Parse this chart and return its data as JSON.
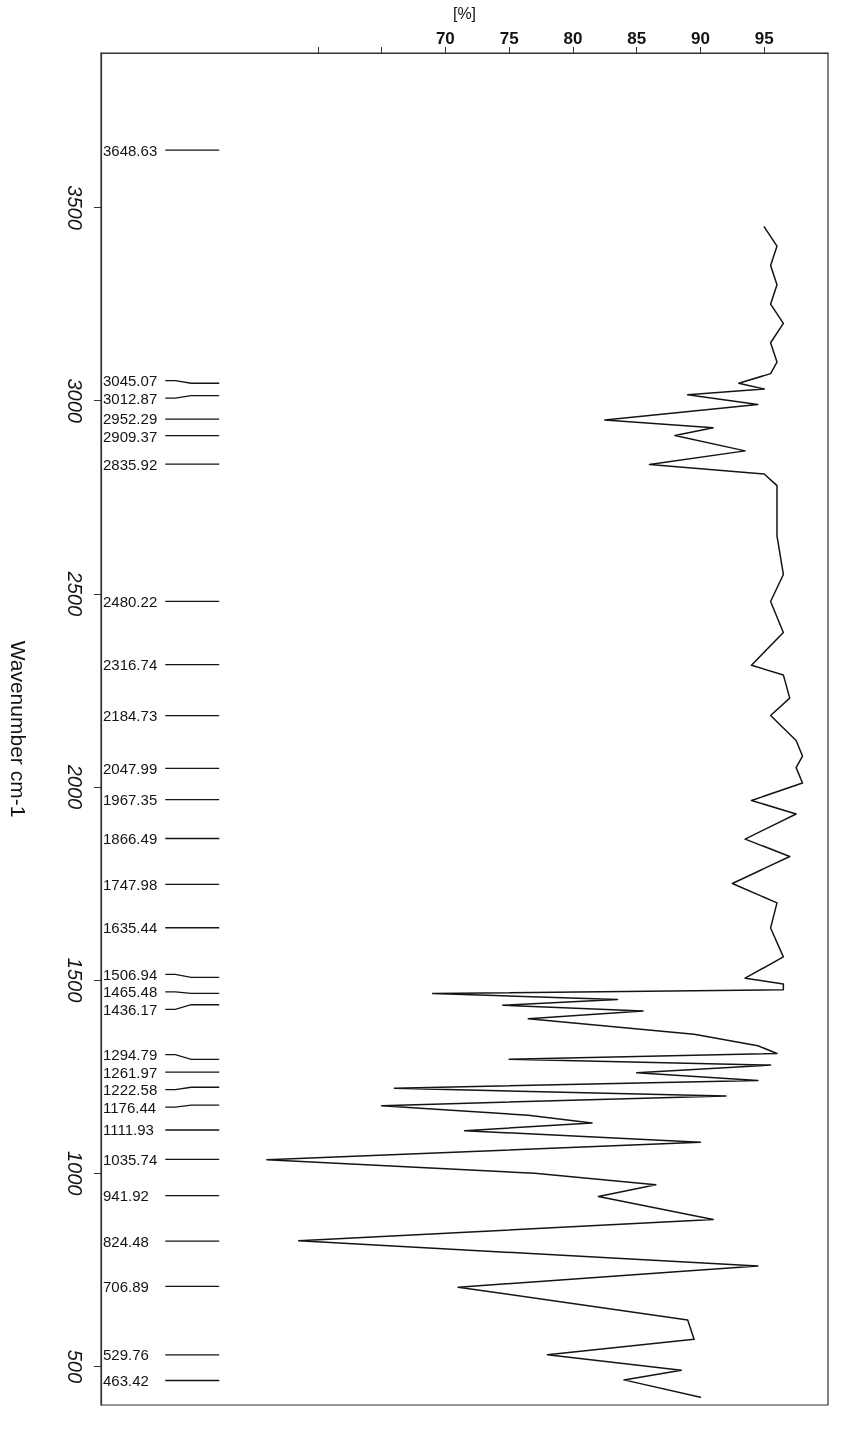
{
  "chart_data": {
    "type": "line",
    "xlabel": "[%]",
    "ylabel": "Wavenumber cm-1",
    "xlim": [
      43,
      100
    ],
    "xticks": [
      {
        "value": 60,
        "label": null
      },
      {
        "value": 65,
        "label": null
      },
      70,
      75,
      80,
      85,
      90,
      95
    ],
    "ylim": [
      400,
      3900
    ],
    "yticks": [
      500,
      1000,
      1500,
      2000,
      2500,
      3000,
      3500
    ],
    "series": [
      {
        "color": "#141414",
        "x": [
          95,
          96,
          95.5,
          96,
          95.5,
          96.5,
          95.5,
          96,
          95.5,
          93,
          95,
          89,
          94.5,
          82.5,
          91,
          88,
          93.5,
          86,
          95,
          96,
          96,
          96.5,
          95.5,
          96.5,
          94,
          96.5,
          97,
          95.5,
          97.5,
          98,
          97.5,
          98,
          94,
          97.5,
          93.5,
          97,
          92.5,
          96,
          95.5,
          96.5,
          93.5,
          96.5,
          96.5,
          69,
          83.5,
          74.5,
          85.5,
          76.5,
          89.5,
          94.5,
          96,
          75,
          95.5,
          85,
          94.5,
          66,
          92,
          65,
          76.5,
          81.5,
          71.5,
          90,
          56,
          77,
          86.5,
          82,
          91,
          58.5,
          94.5,
          71,
          89,
          89.5,
          78,
          88.5,
          84,
          90
        ],
        "values": [
          3450,
          3400,
          3350,
          3300,
          3250,
          3200,
          3150,
          3100,
          3070,
          3045,
          3030,
          3015,
          2990,
          2950,
          2930,
          2910,
          2870,
          2835,
          2810,
          2780,
          2650,
          2550,
          2480,
          2400,
          2315,
          2290,
          2230,
          2185,
          2120,
          2080,
          2050,
          2010,
          1965,
          1930,
          1865,
          1820,
          1750,
          1700,
          1635,
          1560,
          1505,
          1490,
          1475,
          1465,
          1450,
          1435,
          1420,
          1400,
          1360,
          1330,
          1310,
          1295,
          1280,
          1260,
          1240,
          1220,
          1200,
          1175,
          1150,
          1130,
          1110,
          1080,
          1035,
          1000,
          970,
          940,
          880,
          825,
          760,
          705,
          620,
          570,
          530,
          490,
          465,
          420
        ]
      }
    ],
    "ref_lines": [
      {
        "axis": "y",
        "value": 3648.63,
        "label": "3648.63"
      },
      {
        "axis": "y",
        "value": 3045.07,
        "label": "3045.07"
      },
      {
        "axis": "y",
        "value": 3012.87,
        "label": "3012.87"
      },
      {
        "axis": "y",
        "value": 2952.29,
        "label": "2952.29"
      },
      {
        "axis": "y",
        "value": 2909.37,
        "label": "2909.37"
      },
      {
        "axis": "y",
        "value": 2835.92,
        "label": "2835.92"
      },
      {
        "axis": "y",
        "value": 2480.22,
        "label": "2480.22"
      },
      {
        "axis": "y",
        "value": 2316.74,
        "label": "2316.74"
      },
      {
        "axis": "y",
        "value": 2184.73,
        "label": "2184.73"
      },
      {
        "axis": "y",
        "value": 2047.99,
        "label": "2047.99"
      },
      {
        "axis": "y",
        "value": 1967.35,
        "label": "1967.35"
      },
      {
        "axis": "y",
        "value": 1866.49,
        "label": "1866.49"
      },
      {
        "axis": "y",
        "value": 1747.98,
        "label": "1747.98"
      },
      {
        "axis": "y",
        "value": 1635.44,
        "label": "1635.44"
      },
      {
        "axis": "y",
        "value": 1506.94,
        "label": "1506.94"
      },
      {
        "axis": "y",
        "value": 1465.48,
        "label": "1465.48"
      },
      {
        "axis": "y",
        "value": 1436.17,
        "label": "1436.17"
      },
      {
        "axis": "y",
        "value": 1294.79,
        "label": "1294.79"
      },
      {
        "axis": "y",
        "value": 1261.97,
        "label": "1261.97"
      },
      {
        "axis": "y",
        "value": 1222.58,
        "label": "1222.58"
      },
      {
        "axis": "y",
        "value": 1176.44,
        "label": "1176.44"
      },
      {
        "axis": "y",
        "value": 1111.93,
        "label": "1111.93"
      },
      {
        "axis": "y",
        "value": 1035.74,
        "label": "1035.74"
      },
      {
        "axis": "y",
        "value": 941.92,
        "label": "941.92"
      },
      {
        "axis": "y",
        "value": 824.48,
        "label": "824.48"
      },
      {
        "axis": "y",
        "value": 706.89,
        "label": "706.89"
      },
      {
        "axis": "y",
        "value": 529.76,
        "label": "529.76"
      },
      {
        "axis": "y",
        "value": 463.42,
        "label": "463.42"
      }
    ]
  }
}
